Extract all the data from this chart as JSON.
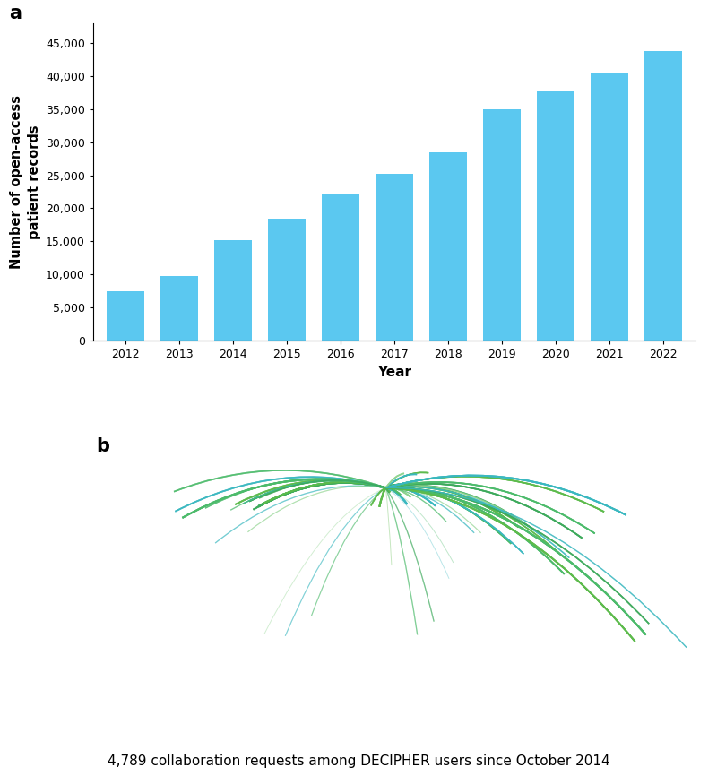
{
  "panel_a": {
    "years": [
      2012,
      2013,
      2014,
      2015,
      2016,
      2017,
      2018,
      2019,
      2020,
      2021,
      2022
    ],
    "values": [
      7500,
      9700,
      15200,
      18500,
      22300,
      25200,
      28500,
      35000,
      37700,
      40400,
      43800
    ],
    "bar_color": "#5BC8F0",
    "ylabel": "Number of open-access\npatient records",
    "xlabel": "Year",
    "ylim": [
      0,
      48000
    ],
    "yticks": [
      0,
      5000,
      10000,
      15000,
      20000,
      25000,
      30000,
      35000,
      40000,
      45000
    ],
    "ytick_labels": [
      "0",
      "5,000",
      "10,000",
      "15,000",
      "20,000",
      "25,000",
      "30,000",
      "35,000",
      "40,000",
      "45,000"
    ],
    "panel_label": "a"
  },
  "panel_b": {
    "panel_label": "b",
    "caption": "4,789 collaboration requests among DECIPHER users since October 2014",
    "map_color": "#CCCCCC",
    "map_edge_color": "#BBBBBB",
    "background_color": "#FFFFFF",
    "hub_lon": 0.0,
    "hub_lat": 51.5,
    "map_extent": [
      -170,
      180,
      -60,
      85
    ],
    "connections": [
      {
        "lon": -74.0,
        "lat": 40.7,
        "color": "#4CBB6B",
        "alpha": 0.75,
        "lw": 1.8,
        "n": 8
      },
      {
        "lon": -79.4,
        "lat": 43.7,
        "color": "#3DAA5C",
        "alpha": 0.65,
        "lw": 1.4,
        "n": 5
      },
      {
        "lon": -87.6,
        "lat": 41.8,
        "color": "#5DBB4C",
        "alpha": 0.65,
        "lw": 1.3,
        "n": 4
      },
      {
        "lon": -118.2,
        "lat": 34.1,
        "color": "#4CBB6B",
        "alpha": 0.65,
        "lw": 1.4,
        "n": 6
      },
      {
        "lon": -122.4,
        "lat": 37.8,
        "color": "#3AB8C0",
        "alpha": 0.6,
        "lw": 1.2,
        "n": 4
      },
      {
        "lon": -123.1,
        "lat": 49.3,
        "color": "#4CBB6B",
        "alpha": 0.6,
        "lw": 1.2,
        "n": 3
      },
      {
        "lon": -77.0,
        "lat": 38.9,
        "color": "#3DAA5C",
        "alpha": 0.65,
        "lw": 1.3,
        "n": 5
      },
      {
        "lon": -71.1,
        "lat": 42.4,
        "color": "#5DBB4C",
        "alpha": 0.6,
        "lw": 1.2,
        "n": 4
      },
      {
        "lon": -104.9,
        "lat": 39.7,
        "color": "#4CBB6B",
        "alpha": 0.55,
        "lw": 1.0,
        "n": 3
      },
      {
        "lon": -83.0,
        "lat": 42.3,
        "color": "#3AB8C0",
        "alpha": 0.55,
        "lw": 1.0,
        "n": 3
      },
      {
        "lon": -99.1,
        "lat": 19.4,
        "color": "#3AB8C0",
        "alpha": 0.45,
        "lw": 0.9,
        "n": 2
      },
      {
        "lon": -80.2,
        "lat": 25.8,
        "color": "#8FD48F",
        "alpha": 0.45,
        "lw": 0.8,
        "n": 2
      },
      {
        "lon": -90.2,
        "lat": 38.6,
        "color": "#4CBB6B",
        "alpha": 0.5,
        "lw": 0.9,
        "n": 2
      },
      {
        "lon": -73.6,
        "lat": 45.5,
        "color": "#3DAA5C",
        "alpha": 0.55,
        "lw": 1.0,
        "n": 3
      },
      {
        "lon": -58.4,
        "lat": -34.6,
        "color": "#3AB8C0",
        "alpha": 0.4,
        "lw": 0.8,
        "n": 2
      },
      {
        "lon": -43.2,
        "lat": -22.9,
        "color": "#4CBB6B",
        "alpha": 0.4,
        "lw": 0.8,
        "n": 2
      },
      {
        "lon": -70.6,
        "lat": -33.5,
        "color": "#8FD48F",
        "alpha": 0.4,
        "lw": 0.7,
        "n": 1
      },
      {
        "lon": 2.3,
        "lat": 48.9,
        "color": "#5DBB4C",
        "alpha": 0.75,
        "lw": 1.8,
        "n": 9
      },
      {
        "lon": 13.4,
        "lat": 52.5,
        "color": "#4CBB6B",
        "alpha": 0.75,
        "lw": 1.8,
        "n": 9
      },
      {
        "lon": 4.9,
        "lat": 52.4,
        "color": "#3DAA5C",
        "alpha": 0.7,
        "lw": 1.5,
        "n": 7
      },
      {
        "lon": -3.7,
        "lat": 40.4,
        "color": "#5DBB4C",
        "alpha": 0.7,
        "lw": 1.4,
        "n": 6
      },
      {
        "lon": 12.5,
        "lat": 41.9,
        "color": "#3AB8C0",
        "alpha": 0.7,
        "lw": 1.4,
        "n": 6
      },
      {
        "lon": 14.5,
        "lat": 46.1,
        "color": "#8FD48F",
        "alpha": 0.65,
        "lw": 1.2,
        "n": 5
      },
      {
        "lon": 19.0,
        "lat": 47.5,
        "color": "#4CBB6B",
        "alpha": 0.65,
        "lw": 1.2,
        "n": 5
      },
      {
        "lon": 21.0,
        "lat": 52.2,
        "color": "#3DAA5C",
        "alpha": 0.65,
        "lw": 1.2,
        "n": 4
      },
      {
        "lon": 24.9,
        "lat": 60.2,
        "color": "#5DBB4C",
        "alpha": 0.65,
        "lw": 1.1,
        "n": 4
      },
      {
        "lon": 18.1,
        "lat": 59.3,
        "color": "#3AB8C0",
        "alpha": 0.65,
        "lw": 1.1,
        "n": 4
      },
      {
        "lon": 10.7,
        "lat": 59.9,
        "color": "#8FD48F",
        "alpha": 0.65,
        "lw": 1.1,
        "n": 4
      },
      {
        "lon": 8.7,
        "lat": 47.4,
        "color": "#4CBB6B",
        "alpha": 0.65,
        "lw": 1.2,
        "n": 5
      },
      {
        "lon": 4.4,
        "lat": 50.8,
        "color": "#3DAA5C",
        "alpha": 0.65,
        "lw": 1.2,
        "n": 5
      },
      {
        "lon": -8.6,
        "lat": 41.1,
        "color": "#5DBB4C",
        "alpha": 0.65,
        "lw": 1.1,
        "n": 4
      },
      {
        "lon": 28.9,
        "lat": 41.0,
        "color": "#3AB8C0",
        "alpha": 0.65,
        "lw": 1.3,
        "n": 5
      },
      {
        "lon": 35.2,
        "lat": 31.8,
        "color": "#4CBB6B",
        "alpha": 0.5,
        "lw": 0.9,
        "n": 2
      },
      {
        "lon": 51.4,
        "lat": 25.3,
        "color": "#3AB8C0",
        "alpha": 0.5,
        "lw": 0.9,
        "n": 2
      },
      {
        "lon": 55.3,
        "lat": 25.3,
        "color": "#8FD48F",
        "alpha": 0.45,
        "lw": 0.8,
        "n": 2
      },
      {
        "lon": 39.3,
        "lat": 8.0,
        "color": "#4CBB6B",
        "alpha": 0.35,
        "lw": 0.7,
        "n": 1
      },
      {
        "lon": 3.4,
        "lat": 6.4,
        "color": "#5DBB4C",
        "alpha": 0.35,
        "lw": 0.7,
        "n": 1
      },
      {
        "lon": 36.8,
        "lat": -1.3,
        "color": "#3AB8C0",
        "alpha": 0.35,
        "lw": 0.7,
        "n": 1
      },
      {
        "lon": 18.4,
        "lat": -33.9,
        "color": "#4CBB6B",
        "alpha": 0.45,
        "lw": 0.9,
        "n": 2
      },
      {
        "lon": 28.0,
        "lat": -26.2,
        "color": "#3DAA5C",
        "alpha": 0.45,
        "lw": 0.9,
        "n": 2
      },
      {
        "lon": 72.9,
        "lat": 19.1,
        "color": "#4CBB6B",
        "alpha": 0.65,
        "lw": 1.3,
        "n": 6
      },
      {
        "lon": 77.2,
        "lat": 28.6,
        "color": "#5DBB4C",
        "alpha": 0.65,
        "lw": 1.3,
        "n": 6
      },
      {
        "lon": 80.2,
        "lat": 13.1,
        "color": "#3AB8C0",
        "alpha": 0.6,
        "lw": 1.1,
        "n": 4
      },
      {
        "lon": 85.3,
        "lat": 27.7,
        "color": "#3DAA5C",
        "alpha": 0.55,
        "lw": 1.0,
        "n": 3
      },
      {
        "lon": 90.4,
        "lat": 23.7,
        "color": "#8FD48F",
        "alpha": 0.55,
        "lw": 1.0,
        "n": 3
      },
      {
        "lon": 103.8,
        "lat": 1.3,
        "color": "#4CBB6B",
        "alpha": 0.65,
        "lw": 1.2,
        "n": 5
      },
      {
        "lon": 100.5,
        "lat": 13.8,
        "color": "#5DBB4C",
        "alpha": 0.6,
        "lw": 1.1,
        "n": 4
      },
      {
        "lon": 106.7,
        "lat": 10.8,
        "color": "#3AB8C0",
        "alpha": 0.55,
        "lw": 1.0,
        "n": 3
      },
      {
        "lon": 114.1,
        "lat": 22.3,
        "color": "#3DAA5C",
        "alpha": 0.65,
        "lw": 1.2,
        "n": 5
      },
      {
        "lon": 121.5,
        "lat": 25.0,
        "color": "#4CBB6B",
        "alpha": 0.65,
        "lw": 1.2,
        "n": 5
      },
      {
        "lon": 126.9,
        "lat": 37.6,
        "color": "#5DBB4C",
        "alpha": 0.65,
        "lw": 1.2,
        "n": 5
      },
      {
        "lon": 139.7,
        "lat": 35.7,
        "color": "#3AB8C0",
        "alpha": 0.65,
        "lw": 1.3,
        "n": 6
      },
      {
        "lon": 151.2,
        "lat": -33.9,
        "color": "#4CBB6B",
        "alpha": 0.65,
        "lw": 1.4,
        "n": 7
      },
      {
        "lon": 144.9,
        "lat": -37.8,
        "color": "#5DBB4C",
        "alpha": 0.65,
        "lw": 1.3,
        "n": 6
      },
      {
        "lon": 153.0,
        "lat": -27.5,
        "color": "#3DAA5C",
        "alpha": 0.6,
        "lw": 1.1,
        "n": 4
      },
      {
        "lon": 174.8,
        "lat": -41.3,
        "color": "#3AB8C0",
        "alpha": 0.5,
        "lw": 0.9,
        "n": 3
      }
    ]
  }
}
